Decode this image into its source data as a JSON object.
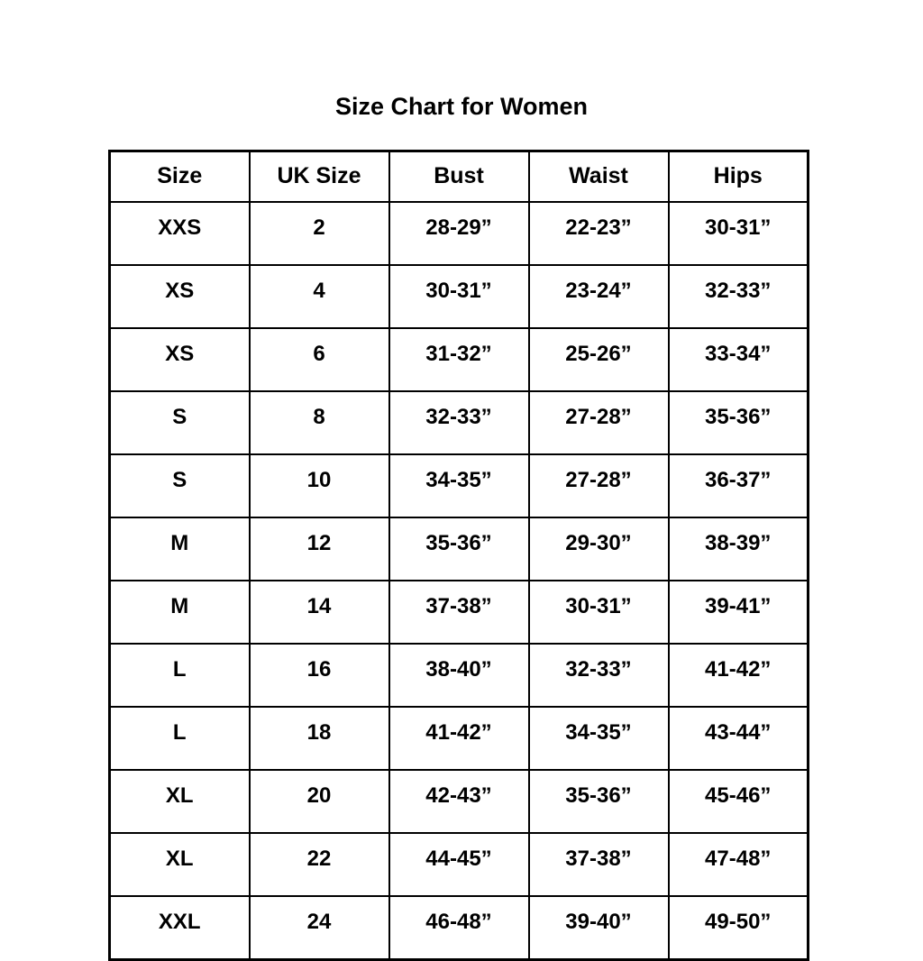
{
  "chart_data": {
    "type": "table",
    "title": "Size Chart for Women",
    "columns": [
      "Size",
      "UK Size",
      "Bust",
      "Waist",
      "Hips"
    ],
    "rows": [
      [
        "XXS",
        "2",
        "28-29”",
        "22-23”",
        "30-31”"
      ],
      [
        "XS",
        "4",
        "30-31”",
        "23-24”",
        "32-33”"
      ],
      [
        "XS",
        "6",
        "31-32”",
        "25-26”",
        "33-34”"
      ],
      [
        "S",
        "8",
        "32-33”",
        "27-28”",
        "35-36”"
      ],
      [
        "S",
        "10",
        "34-35”",
        "27-28”",
        "36-37”"
      ],
      [
        "M",
        "12",
        "35-36”",
        "29-30”",
        "38-39”"
      ],
      [
        "M",
        "14",
        "37-38”",
        "30-31”",
        "39-41”"
      ],
      [
        "L",
        "16",
        "38-40”",
        "32-33”",
        "41-42”"
      ],
      [
        "L",
        "18",
        "41-42”",
        "34-35”",
        "43-44”"
      ],
      [
        "XL",
        "20",
        "42-43”",
        "35-36”",
        "45-46”"
      ],
      [
        "XL",
        "22",
        "44-45”",
        "37-38”",
        "47-48”"
      ],
      [
        "XXL",
        "24",
        "46-48”",
        "39-40”",
        "49-50”"
      ]
    ],
    "text_color": "#000000",
    "border_color": "#000000",
    "background_color": "#ffffff"
  }
}
